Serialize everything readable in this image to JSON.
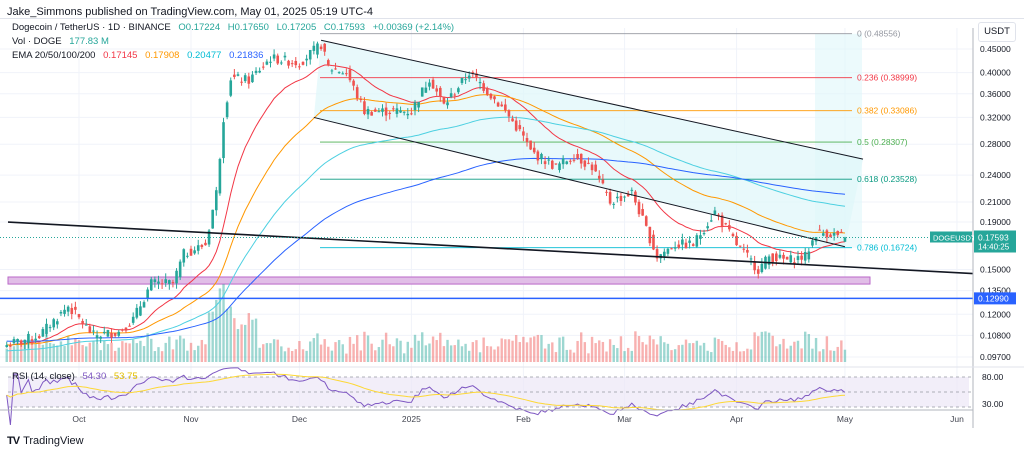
{
  "header": {
    "published": "Jake_Simmons published on TradingView.com, May 01, 2025 05:19 UTC-4"
  },
  "legend": {
    "symbol": "Dogecoin / TetherUS · 1D · BINANCE",
    "open": "O0.17224",
    "high": "H0.17650",
    "low": "L0.17205",
    "close": "C0.17593",
    "change": "+0.00369 (+2.14%)",
    "vol_label": "Vol · DOGE",
    "vol_value": "177.83 M",
    "ema_label": "EMA 20/50/100/200",
    "ema20": "0.17145",
    "ema50": "0.17908",
    "ema100": "0.20477",
    "ema200": "0.21836",
    "rsi_label": "RSI (14, close)",
    "rsi_value": "54.30",
    "rsi_ma": "53.75"
  },
  "axis": {
    "currency": "USDT",
    "rsi_ticks": [
      "80.00",
      "30.00"
    ]
  },
  "symbol_badge": {
    "name": "DOGEUSDT",
    "price": "0.17593",
    "countdown": "14:40:25"
  },
  "support_badge": "0.12990",
  "brand": {
    "name": "TradingView"
  },
  "colors": {
    "up": "#26a69a",
    "down": "#ef5350",
    "ema20": "#f23645",
    "ema50": "#ff9800",
    "ema100": "#4dd0e1",
    "ema200": "#2962ff",
    "rsi": "#7e57c2",
    "rsi_ma": "#fdd835",
    "support": "#2962ff"
  },
  "chart_data": {
    "type": "candlestick",
    "scale": "log",
    "ylim": [
      0.095,
      0.5
    ],
    "y_ticks": [
      0.45,
      0.4,
      0.36,
      0.32,
      0.28,
      0.24,
      0.21,
      0.19,
      0.15,
      0.135,
      0.12,
      0.108,
      0.097
    ],
    "y_tick_labels": [
      "0.45000",
      "0.40000",
      "0.36000",
      "0.32000",
      "0.28000",
      "0.24000",
      "0.21000",
      "0.19000",
      "0.15000",
      "0.13500",
      "0.12000",
      "0.10800",
      "0.09700"
    ],
    "x_ticks": [
      {
        "date": "2024-10-01",
        "label": "Oct"
      },
      {
        "date": "2024-11-01",
        "label": "Nov"
      },
      {
        "date": "2024-12-01",
        "label": "Dec"
      },
      {
        "date": "2025-01-01",
        "label": "2025"
      },
      {
        "date": "2025-02-01",
        "label": "Feb"
      },
      {
        "date": "2025-03-01",
        "label": "Mar"
      },
      {
        "date": "2025-04-01",
        "label": "Apr"
      },
      {
        "date": "2025-05-01",
        "label": "May"
      },
      {
        "date": "2025-06-01",
        "label": "Jun"
      }
    ],
    "close_keypoints": [
      [
        "2024-09-11",
        0.103
      ],
      [
        "2024-09-20",
        0.108
      ],
      [
        "2024-09-28",
        0.125
      ],
      [
        "2024-10-05",
        0.108
      ],
      [
        "2024-10-12",
        0.11
      ],
      [
        "2024-10-16",
        0.117
      ],
      [
        "2024-10-21",
        0.14
      ],
      [
        "2024-10-27",
        0.14
      ],
      [
        "2024-10-30",
        0.162
      ],
      [
        "2024-11-05",
        0.17
      ],
      [
        "2024-11-08",
        0.22
      ],
      [
        "2024-11-10",
        0.32
      ],
      [
        "2024-11-12",
        0.39
      ],
      [
        "2024-11-17",
        0.385
      ],
      [
        "2024-11-23",
        0.43
      ],
      [
        "2024-12-01",
        0.42
      ],
      [
        "2024-12-07",
        0.46
      ],
      [
        "2024-12-09",
        0.41
      ],
      [
        "2024-12-14",
        0.4
      ],
      [
        "2024-12-19",
        0.33
      ],
      [
        "2024-12-25",
        0.33
      ],
      [
        "2025-01-01",
        0.33
      ],
      [
        "2025-01-06",
        0.39
      ],
      [
        "2025-01-10",
        0.34
      ],
      [
        "2025-01-17",
        0.4
      ],
      [
        "2025-01-20",
        0.38
      ],
      [
        "2025-01-27",
        0.33
      ],
      [
        "2025-02-01",
        0.29
      ],
      [
        "2025-02-03",
        0.27
      ],
      [
        "2025-02-10",
        0.25
      ],
      [
        "2025-02-15",
        0.265
      ],
      [
        "2025-02-20",
        0.25
      ],
      [
        "2025-02-25",
        0.21
      ],
      [
        "2025-03-03",
        0.22
      ],
      [
        "2025-03-10",
        0.16
      ],
      [
        "2025-03-15",
        0.17
      ],
      [
        "2025-03-20",
        0.17
      ],
      [
        "2025-03-26",
        0.2
      ],
      [
        "2025-04-01",
        0.17
      ],
      [
        "2025-04-07",
        0.15
      ],
      [
        "2025-04-10",
        0.16
      ],
      [
        "2025-04-15",
        0.157
      ],
      [
        "2025-04-20",
        0.16
      ],
      [
        "2025-04-23",
        0.18
      ],
      [
        "2025-04-26",
        0.18
      ],
      [
        "2025-05-01",
        0.17593
      ]
    ],
    "fib_levels": [
      {
        "ratio": "0",
        "price": 0.48556,
        "label": "0 (0.48556)",
        "color": "#9598a1"
      },
      {
        "ratio": "0.236",
        "price": 0.38999,
        "label": "0.236 (0.38999)",
        "color": "#f23645"
      },
      {
        "ratio": "0.382",
        "price": 0.33086,
        "label": "0.382 (0.33086)",
        "color": "#ff9800"
      },
      {
        "ratio": "0.5",
        "price": 0.28307,
        "label": "0.5 (0.28307)",
        "color": "#4caf50"
      },
      {
        "ratio": "0.618",
        "price": 0.23528,
        "label": "0.618 (0.23528)",
        "color": "#089981"
      },
      {
        "ratio": "0.786",
        "price": 0.16724,
        "label": "0.786 (0.16724)",
        "color": "#00bcd4"
      }
    ],
    "support_price": 0.1299,
    "demand_zone": [
      0.1395,
      0.1445
    ],
    "channel_upper": [
      [
        "2024-12-07",
        0.47
      ],
      [
        "2025-05-06",
        0.26
      ]
    ],
    "channel_lower": [
      [
        "2024-12-05",
        0.32
      ],
      [
        "2025-05-01",
        0.168
      ]
    ],
    "trendline": [
      [
        "2024-09-11",
        0.19
      ],
      [
        "2025-06-05",
        0.147
      ]
    ]
  }
}
